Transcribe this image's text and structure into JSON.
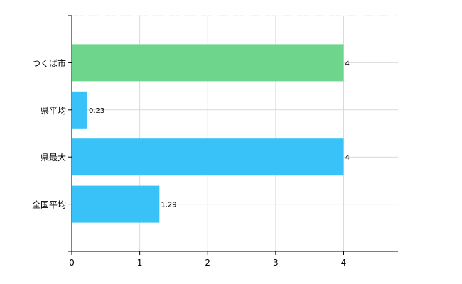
{
  "chart_data": {
    "type": "bar",
    "orientation": "horizontal",
    "categories": [
      "つくば市",
      "県平均",
      "県最大",
      "全国平均"
    ],
    "values": [
      4,
      0.23,
      4,
      1.29
    ],
    "data_labels": [
      "4",
      "0.23",
      "4",
      "1.29"
    ],
    "bar_colors": [
      "#6dd58c",
      "#38c2f7",
      "#38c2f7",
      "#38c2f7"
    ],
    "xlim": [
      0,
      4.8
    ],
    "x_ticks": [
      0,
      1,
      2,
      3,
      4
    ],
    "x_tick_labels": [
      "0",
      "1",
      "2",
      "3",
      "4"
    ],
    "grid": true,
    "grid_color": "#d9d9d9",
    "axis_color": "#000000"
  }
}
